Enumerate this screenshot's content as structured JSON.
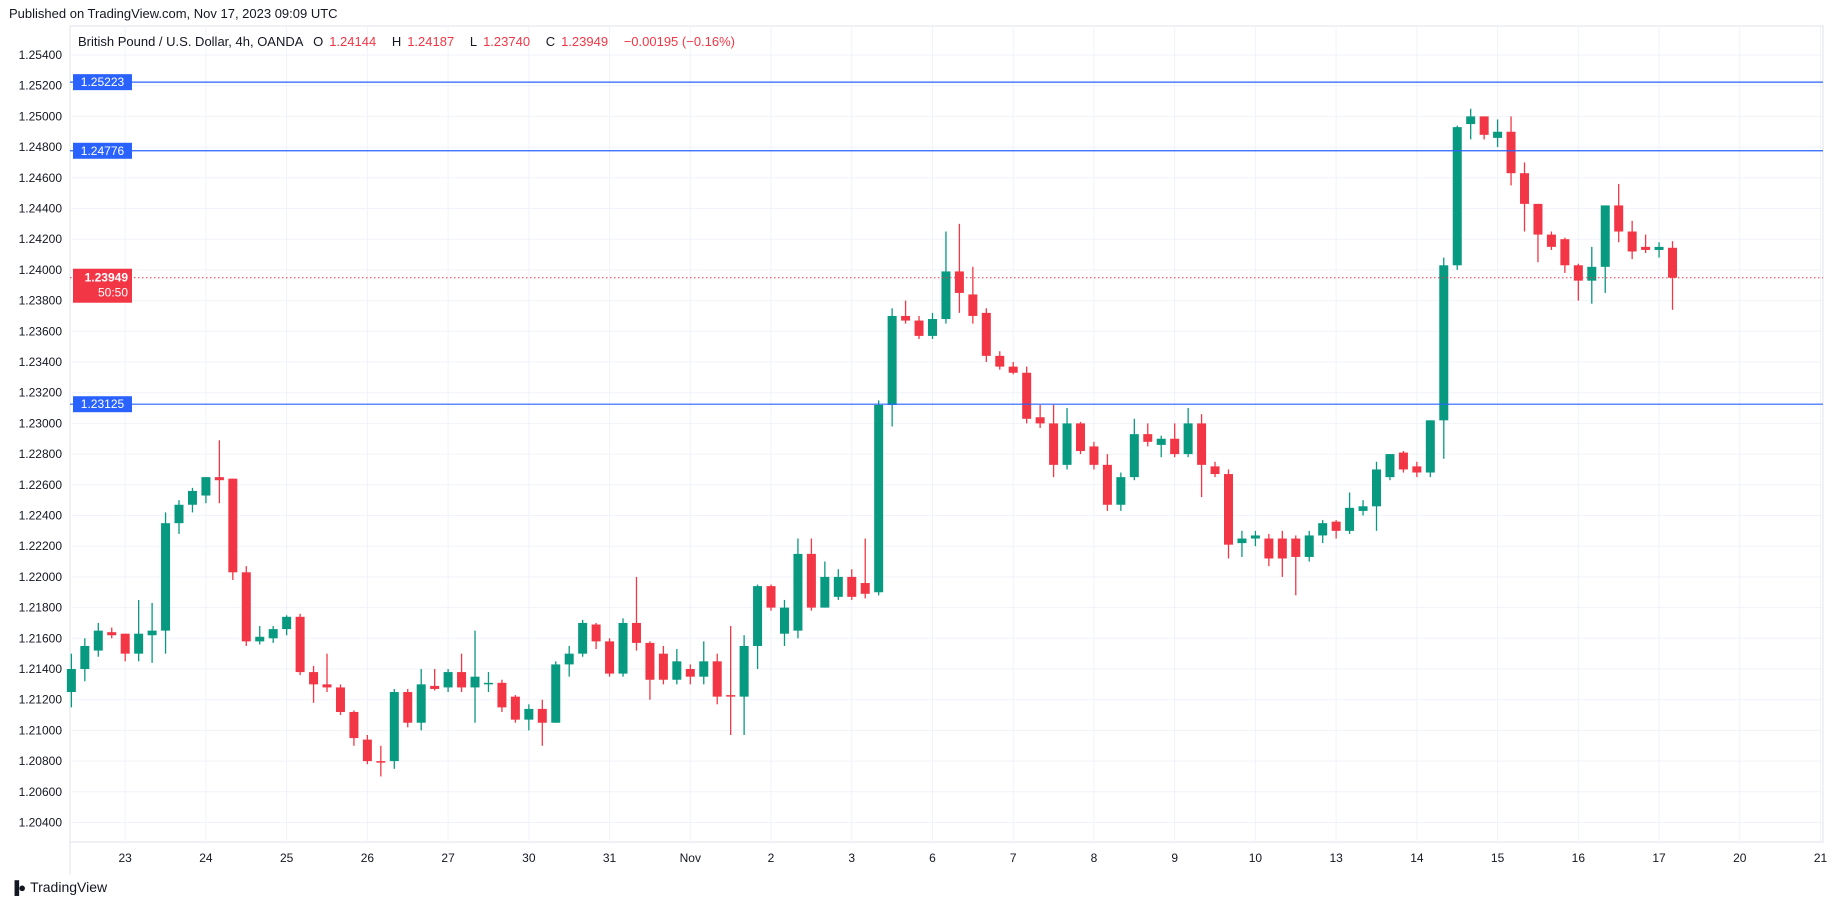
{
  "header": {
    "published": "Published on TradingView.com, Nov 17, 2023 09:09 UTC"
  },
  "legend": {
    "symbol": "British Pound / U.S. Dollar, 4h, OANDA",
    "open_label": "O",
    "open": "1.24144",
    "high_label": "H",
    "high": "1.24187",
    "low_label": "L",
    "low": "1.23740",
    "close_label": "C",
    "close": "1.23949",
    "change": "−0.00195 (−0.16%)"
  },
  "footer": {
    "brand": "TradingView",
    "logo_icon": "tradingview-logo-icon"
  },
  "colors": {
    "up": "#089981",
    "down": "#f23645",
    "level": "#2962ff",
    "grid": "#f0f3fa",
    "axis_text": "#131722"
  },
  "chart_data": {
    "type": "candlestick",
    "title": "British Pound / U.S. Dollar, 4h, OANDA",
    "ylim": [
      1.2025,
      1.2556
    ],
    "grid": true,
    "y_ticks": [
      "1.25400",
      "1.25200",
      "1.25000",
      "1.24800",
      "1.24600",
      "1.24400",
      "1.24200",
      "1.24000",
      "1.23800",
      "1.23600",
      "1.23400",
      "1.23200",
      "1.23000",
      "1.22800",
      "1.22600",
      "1.22400",
      "1.22200",
      "1.22000",
      "1.21800",
      "1.21600",
      "1.21400",
      "1.21200",
      "1.21000",
      "1.20800",
      "1.20600",
      "1.20400"
    ],
    "x_ticks": [
      "23",
      "24",
      "25",
      "26",
      "27",
      "30",
      "31",
      "Nov",
      "2",
      "3",
      "6",
      "7",
      "8",
      "9",
      "10",
      "13",
      "14",
      "15",
      "16",
      "17",
      "20",
      "21"
    ],
    "levels": [
      "1.25223",
      "1.24776",
      "1.23125"
    ],
    "last_price": {
      "value": "1.23949",
      "countdown": "50:50"
    },
    "candles": [
      [
        1.2125,
        1.215,
        1.2115,
        1.214
      ],
      [
        1.214,
        1.216,
        1.2132,
        1.2155
      ],
      [
        1.2152,
        1.217,
        1.2148,
        1.2165
      ],
      [
        1.2164,
        1.2167,
        1.216,
        1.2162
      ],
      [
        1.2163,
        1.2163,
        1.2145,
        1.215
      ],
      [
        1.215,
        1.2185,
        1.2145,
        1.2163
      ],
      [
        1.2162,
        1.2183,
        1.2144,
        1.2165
      ],
      [
        1.2165,
        1.2242,
        1.215,
        1.2235
      ],
      [
        1.2235,
        1.225,
        1.2228,
        1.2247
      ],
      [
        1.2247,
        1.2258,
        1.2242,
        1.2256
      ],
      [
        1.2253,
        1.2265,
        1.2248,
        1.2265
      ],
      [
        1.2265,
        1.2289,
        1.2248,
        1.2263
      ],
      [
        1.2264,
        1.2264,
        1.2198,
        1.2203
      ],
      [
        1.2203,
        1.2207,
        1.2155,
        1.2158
      ],
      [
        1.2158,
        1.2168,
        1.2156,
        1.2161
      ],
      [
        1.216,
        1.2168,
        1.2157,
        1.2166
      ],
      [
        1.2166,
        1.2175,
        1.2162,
        1.2174
      ],
      [
        1.2174,
        1.2176,
        1.2136,
        1.2138
      ],
      [
        1.2138,
        1.2142,
        1.2118,
        1.213
      ],
      [
        1.213,
        1.215,
        1.2125,
        1.2128
      ],
      [
        1.2128,
        1.213,
        1.211,
        1.2112
      ],
      [
        1.2112,
        1.2113,
        1.209,
        1.2095
      ],
      [
        1.2094,
        1.2097,
        1.2078,
        1.208
      ],
      [
        1.208,
        1.209,
        1.207,
        1.2079
      ],
      [
        1.208,
        1.2127,
        1.2075,
        1.2125
      ],
      [
        1.2125,
        1.2127,
        1.2102,
        1.2105
      ],
      [
        1.2105,
        1.214,
        1.21,
        1.213
      ],
      [
        1.2129,
        1.214,
        1.2126,
        1.2127
      ],
      [
        1.2128,
        1.214,
        1.2125,
        1.2138
      ],
      [
        1.2138,
        1.215,
        1.2125,
        1.2128
      ],
      [
        1.2128,
        1.2165,
        1.2105,
        1.2135
      ],
      [
        1.213,
        1.2138,
        1.2125,
        1.2131
      ],
      [
        1.2131,
        1.2133,
        1.2112,
        1.2115
      ],
      [
        1.2122,
        1.2123,
        1.2105,
        1.2107
      ],
      [
        1.2107,
        1.2117,
        1.21,
        1.2114
      ],
      [
        1.2114,
        1.212,
        1.209,
        1.2105
      ],
      [
        1.2105,
        1.2145,
        1.2105,
        1.2143
      ],
      [
        1.2143,
        1.2155,
        1.2135,
        1.215
      ],
      [
        1.215,
        1.2172,
        1.2148,
        1.217
      ],
      [
        1.2169,
        1.217,
        1.2153,
        1.2158
      ],
      [
        1.2158,
        1.216,
        1.2135,
        1.2137
      ],
      [
        1.2137,
        1.2173,
        1.2135,
        1.217
      ],
      [
        1.217,
        1.22,
        1.2152,
        1.2157
      ],
      [
        1.2157,
        1.2158,
        1.212,
        1.2133
      ],
      [
        1.215,
        1.2155,
        1.213,
        1.2133
      ],
      [
        1.2133,
        1.2153,
        1.213,
        1.2145
      ],
      [
        1.214,
        1.2143,
        1.213,
        1.2135
      ],
      [
        1.2135,
        1.2158,
        1.213,
        1.2145
      ],
      [
        1.2145,
        1.215,
        1.2117,
        1.2122
      ],
      [
        1.2123,
        1.2168,
        1.2097,
        1.2122
      ],
      [
        1.2122,
        1.2162,
        1.2097,
        1.2155
      ],
      [
        1.2155,
        1.2195,
        1.214,
        1.2194
      ],
      [
        1.2194,
        1.2195,
        1.2178,
        1.218
      ],
      [
        1.2163,
        1.2185,
        1.2155,
        1.218
      ],
      [
        1.2165,
        1.2225,
        1.216,
        1.2215
      ],
      [
        1.2215,
        1.2225,
        1.2178,
        1.218
      ],
      [
        1.218,
        1.221,
        1.218,
        1.22
      ],
      [
        1.2187,
        1.2205,
        1.2185,
        1.22
      ],
      [
        1.22,
        1.2205,
        1.2185,
        1.2187
      ],
      [
        1.2196,
        1.2225,
        1.2186,
        1.2189
      ],
      [
        1.219,
        1.2315,
        1.2188,
        1.2312
      ],
      [
        1.2312,
        1.2375,
        1.2298,
        1.237
      ],
      [
        1.237,
        1.238,
        1.2365,
        1.2367
      ],
      [
        1.2367,
        1.237,
        1.2355,
        1.2357
      ],
      [
        1.2357,
        1.2372,
        1.2355,
        1.2368
      ],
      [
        1.2368,
        1.2425,
        1.2365,
        1.2399
      ],
      [
        1.2399,
        1.243,
        1.2372,
        1.2385
      ],
      [
        1.2384,
        1.2402,
        1.2365,
        1.237
      ],
      [
        1.2372,
        1.2375,
        1.234,
        1.2344
      ],
      [
        1.2344,
        1.2347,
        1.2335,
        1.2337
      ],
      [
        1.2337,
        1.234,
        1.2332,
        1.2333
      ],
      [
        1.2333,
        1.2337,
        1.23,
        1.2303
      ],
      [
        1.2304,
        1.2312,
        1.2297,
        1.23
      ],
      [
        1.23,
        1.2312,
        1.2265,
        1.2273
      ],
      [
        1.2273,
        1.231,
        1.227,
        1.23
      ],
      [
        1.23,
        1.2301,
        1.228,
        1.2282
      ],
      [
        1.2285,
        1.2288,
        1.227,
        1.2273
      ],
      [
        1.2273,
        1.228,
        1.2243,
        1.2247
      ],
      [
        1.2247,
        1.2268,
        1.2243,
        1.2265
      ],
      [
        1.2265,
        1.2303,
        1.2263,
        1.2293
      ],
      [
        1.2293,
        1.23,
        1.2285,
        1.2288
      ],
      [
        1.2286,
        1.2292,
        1.2278,
        1.229
      ],
      [
        1.229,
        1.23,
        1.2278,
        1.228
      ],
      [
        1.228,
        1.231,
        1.2278,
        1.23
      ],
      [
        1.23,
        1.2306,
        1.2252,
        1.2273
      ],
      [
        1.2272,
        1.2275,
        1.2265,
        1.2267
      ],
      [
        1.2267,
        1.227,
        1.2212,
        1.2221
      ],
      [
        1.2222,
        1.223,
        1.2213,
        1.2225
      ],
      [
        1.2225,
        1.223,
        1.222,
        1.2227
      ],
      [
        1.2225,
        1.2228,
        1.2207,
        1.2212
      ],
      [
        1.2225,
        1.223,
        1.22,
        1.2212
      ],
      [
        1.2225,
        1.2227,
        1.2188,
        1.2213
      ],
      [
        1.2213,
        1.223,
        1.221,
        1.2227
      ],
      [
        1.2227,
        1.2237,
        1.2222,
        1.2235
      ],
      [
        1.2236,
        1.2237,
        1.2225,
        1.223
      ],
      [
        1.223,
        1.2255,
        1.2228,
        1.2245
      ],
      [
        1.2243,
        1.225,
        1.224,
        1.2246
      ],
      [
        1.2246,
        1.2275,
        1.223,
        1.227
      ],
      [
        1.2265,
        1.228,
        1.2263,
        1.228
      ],
      [
        1.2281,
        1.2282,
        1.2268,
        1.227
      ],
      [
        1.2272,
        1.2275,
        1.2265,
        1.2268
      ],
      [
        1.2268,
        1.2302,
        1.2265,
        1.2302
      ],
      [
        1.2302,
        1.2408,
        1.2277,
        1.2403
      ],
      [
        1.2403,
        1.2494,
        1.24,
        1.2493
      ],
      [
        1.2495,
        1.2505,
        1.2485,
        1.25
      ],
      [
        1.25,
        1.25,
        1.2485,
        1.2488
      ],
      [
        1.2486,
        1.2498,
        1.248,
        1.249
      ],
      [
        1.249,
        1.25,
        1.2455,
        1.2463
      ],
      [
        1.2463,
        1.247,
        1.2425,
        1.2443
      ],
      [
        1.2443,
        1.2443,
        1.2405,
        1.2423
      ],
      [
        1.2423,
        1.2425,
        1.2413,
        1.2415
      ],
      [
        1.242,
        1.2421,
        1.2398,
        1.2403
      ],
      [
        1.2403,
        1.2404,
        1.238,
        1.2393
      ],
      [
        1.2393,
        1.2415,
        1.2378,
        1.2402
      ],
      [
        1.2402,
        1.2442,
        1.2385,
        1.2442
      ],
      [
        1.2442,
        1.2456,
        1.2418,
        1.2425
      ],
      [
        1.2425,
        1.2432,
        1.2407,
        1.2412
      ],
      [
        1.2415,
        1.2423,
        1.2411,
        1.2413
      ],
      [
        1.2413,
        1.2418,
        1.2408,
        1.2415
      ],
      [
        1.24144,
        1.24187,
        1.2374,
        1.23949
      ]
    ]
  }
}
